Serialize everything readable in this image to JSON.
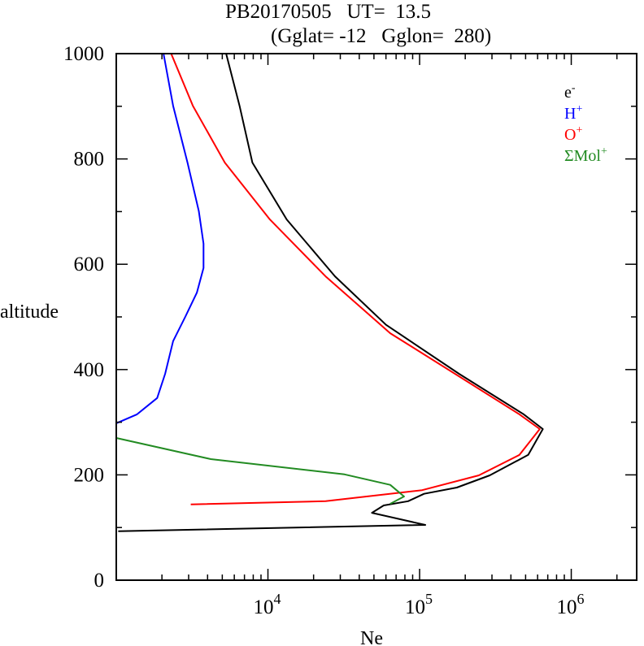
{
  "chart_data": {
    "type": "line",
    "title": "PB20170505   UT=  13.5",
    "subtitle": "(Gglat= -12   Gglon=  280)",
    "xlabel": "Ne",
    "ylabel": "altitude",
    "xscale": "log",
    "xlim": [
      1000,
      2700000
    ],
    "ylim": [
      0,
      1000
    ],
    "xticks": [
      {
        "value": 10000,
        "base": "10",
        "exp": "4"
      },
      {
        "value": 100000,
        "base": "10",
        "exp": "5"
      },
      {
        "value": 1000000,
        "base": "10",
        "exp": "6"
      }
    ],
    "yticks": [
      0,
      200,
      400,
      600,
      800,
      1000
    ],
    "legend_position": "top-right",
    "series": [
      {
        "name": "e-",
        "label_base": "e",
        "label_sup": "-",
        "color": "#000000",
        "points": [
          [
            5300,
            1000
          ],
          [
            6500,
            901
          ],
          [
            7900,
            793
          ],
          [
            13300,
            685
          ],
          [
            27700,
            577
          ],
          [
            60000,
            485
          ],
          [
            182000,
            392
          ],
          [
            486000,
            315
          ],
          [
            650000,
            287
          ],
          [
            520000,
            238
          ],
          [
            290000,
            199
          ],
          [
            176000,
            176
          ],
          [
            107000,
            164
          ],
          [
            84000,
            150
          ],
          [
            58000,
            142
          ],
          [
            48500,
            128
          ],
          [
            109000,
            105
          ],
          [
            1030,
            93
          ]
        ]
      },
      {
        "name": "H+",
        "label_base": "H",
        "label_sup": "+",
        "color": "#0000ff",
        "points": [
          [
            2050,
            1000
          ],
          [
            2370,
            901
          ],
          [
            2950,
            793
          ],
          [
            3500,
            701
          ],
          [
            3760,
            639
          ],
          [
            3760,
            593
          ],
          [
            3400,
            546
          ],
          [
            2850,
            500
          ],
          [
            2370,
            454
          ],
          [
            2100,
            392
          ],
          [
            1860,
            346
          ],
          [
            1370,
            315
          ],
          [
            1000,
            298
          ]
        ]
      },
      {
        "name": "O+",
        "label_base": "O",
        "label_sup": "+",
        "color": "#ff0000",
        "points": [
          [
            2300,
            1000
          ],
          [
            3200,
            901
          ],
          [
            5200,
            793
          ],
          [
            10300,
            685
          ],
          [
            24000,
            577
          ],
          [
            64000,
            469
          ],
          [
            171000,
            392
          ],
          [
            455000,
            315
          ],
          [
            620000,
            287
          ],
          [
            455000,
            238
          ],
          [
            246000,
            199
          ],
          [
            104000,
            171
          ],
          [
            24000,
            150
          ],
          [
            3100,
            144
          ]
        ]
      },
      {
        "name": "ΣMol+",
        "label_base": "ΣMol",
        "label_sup": "+",
        "color": "#228b22",
        "points": [
          [
            1000,
            270
          ],
          [
            4200,
            230
          ],
          [
            32000,
            201
          ],
          [
            64000,
            181
          ],
          [
            79000,
            159
          ],
          [
            64000,
            145
          ]
        ]
      }
    ]
  }
}
